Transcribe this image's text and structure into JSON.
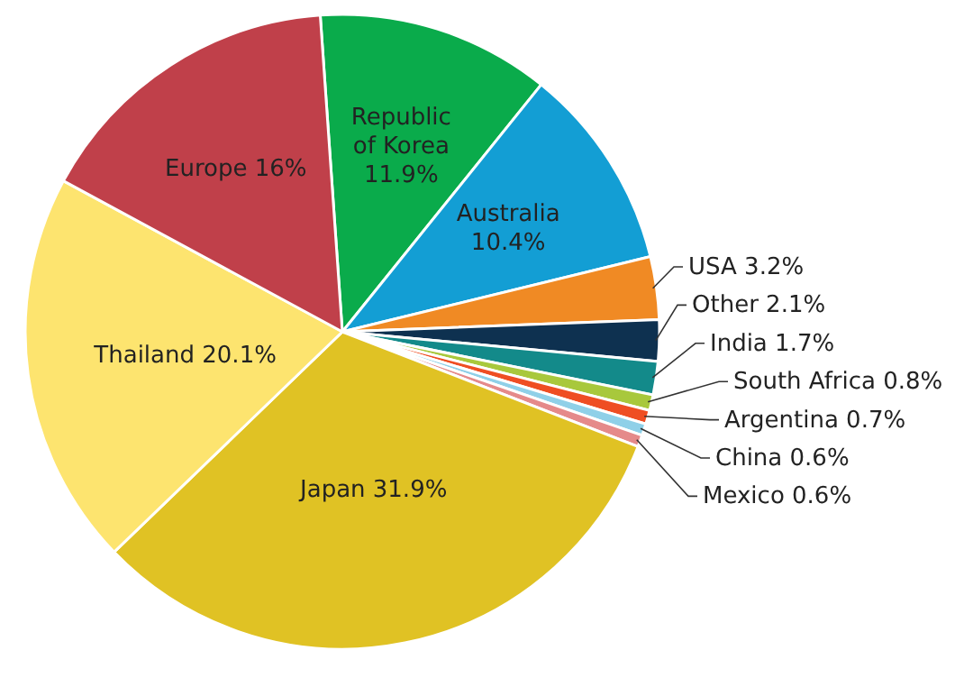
{
  "chart_data": {
    "type": "pie",
    "value_labels": [
      "11.9%",
      "10.4%",
      "3.2%",
      "2.1%",
      "1.7%",
      "0.8%",
      "0.7%",
      "0.6%",
      "0.6%",
      "31.9%",
      "20.1%",
      "16%"
    ],
    "categories": [
      "Republic of Korea",
      "Australia",
      "USA",
      "Other",
      "India",
      "South Africa",
      "Argentina",
      "China",
      "Mexico",
      "Japan",
      "Thailand",
      "Europe"
    ],
    "values": [
      11.9,
      10.4,
      3.2,
      2.1,
      1.7,
      0.8,
      0.7,
      0.6,
      0.6,
      31.9,
      20.1,
      16
    ],
    "colors": [
      "#0aab4b",
      "#139ed4",
      "#f08a24",
      "#0e3150",
      "#138a8a",
      "#a8c83c",
      "#ef4e23",
      "#8fd0e8",
      "#e58a8a",
      "#e0c224",
      "#fde46f",
      "#c0404a"
    ]
  }
}
